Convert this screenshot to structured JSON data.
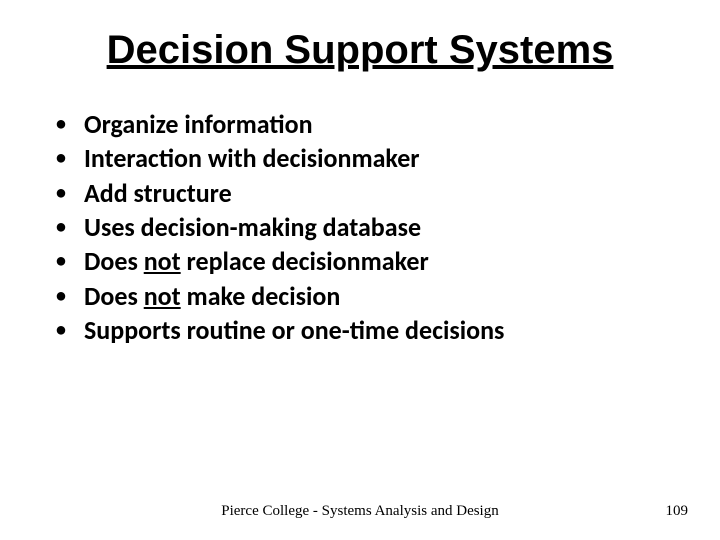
{
  "slide": {
    "title": "Decision Support Systems",
    "title_fontsize": 40,
    "title_underline": true,
    "bullets": [
      {
        "segments": [
          {
            "text": "Organize information",
            "underline": false
          }
        ]
      },
      {
        "segments": [
          {
            "text": "Interaction with decisionmaker",
            "underline": false
          }
        ]
      },
      {
        "segments": [
          {
            "text": "Add structure",
            "underline": false
          }
        ]
      },
      {
        "segments": [
          {
            "text": "Uses decision-making database",
            "underline": false
          }
        ]
      },
      {
        "segments": [
          {
            "text": "Does ",
            "underline": false
          },
          {
            "text": "not",
            "underline": true
          },
          {
            "text": " replace decisionmaker",
            "underline": false
          }
        ]
      },
      {
        "segments": [
          {
            "text": "Does ",
            "underline": false
          },
          {
            "text": "not",
            "underline": true
          },
          {
            "text": "  make decision",
            "underline": false
          }
        ]
      },
      {
        "segments": [
          {
            "text": "Supports routine or one-time decisions",
            "underline": false
          }
        ]
      }
    ],
    "bullet_fontsize": 26,
    "bullet_weight": 700,
    "bullet_marker": "•",
    "footer": "Pierce College - Systems Analysis and Design",
    "page_number": "109",
    "background_color": "#ffffff",
    "text_color": "#000000"
  }
}
